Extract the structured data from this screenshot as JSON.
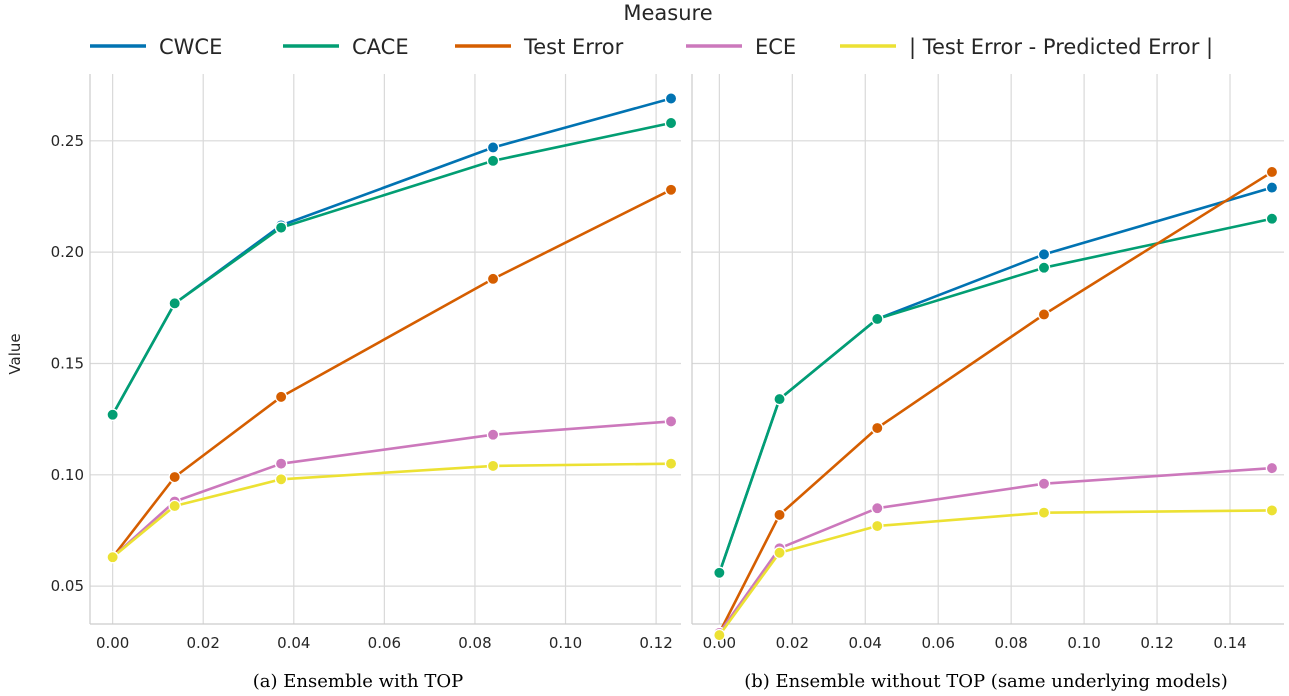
{
  "legend": {
    "title": "Measure",
    "entries": [
      {
        "name": "CWCE",
        "color": "#0173b2"
      },
      {
        "name": "CACE",
        "color": "#029e73"
      },
      {
        "name": "Test Error",
        "color": "#d55e00"
      },
      {
        "name": "ECE",
        "color": "#cc78bc"
      },
      {
        "name": "| Test Error - Predicted Error |",
        "color": "#ece133"
      }
    ]
  },
  "ylabel": "Value",
  "chart_data": [
    {
      "type": "line",
      "caption": "(a) Ensemble with TOP",
      "x_ticks": [
        "0.00",
        "0.02",
        "0.04",
        "0.06",
        "0.08",
        "0.10",
        "0.12"
      ],
      "y_ticks": [
        "0.05",
        "0.10",
        "0.15",
        "0.20",
        "0.25"
      ],
      "xlim": [
        -0.005,
        0.1255
      ],
      "ylim": [
        0.033,
        0.28
      ],
      "grid": true,
      "series": [
        {
          "name": "CWCE",
          "x": [
            0.0,
            0.0137,
            0.0372,
            0.084,
            0.1233
          ],
          "y": [
            0.127,
            0.177,
            0.212,
            0.247,
            0.269
          ]
        },
        {
          "name": "CACE",
          "x": [
            0.0,
            0.0137,
            0.0372,
            0.084,
            0.1233
          ],
          "y": [
            0.127,
            0.177,
            0.211,
            0.241,
            0.258
          ]
        },
        {
          "name": "Test Error",
          "x": [
            0.0,
            0.0137,
            0.0372,
            0.084,
            0.1233
          ],
          "y": [
            0.063,
            0.099,
            0.135,
            0.188,
            0.228
          ]
        },
        {
          "name": "ECE",
          "x": [
            0.0,
            0.0137,
            0.0372,
            0.084,
            0.1233
          ],
          "y": [
            0.063,
            0.088,
            0.105,
            0.118,
            0.124
          ]
        },
        {
          "name": "| Test Error - Predicted Error |",
          "x": [
            0.0,
            0.0137,
            0.0372,
            0.084,
            0.1233
          ],
          "y": [
            0.063,
            0.086,
            0.098,
            0.104,
            0.105
          ]
        }
      ]
    },
    {
      "type": "line",
      "caption": "(b) Ensemble without TOP (same underlying models)",
      "x_ticks": [
        "0.00",
        "0.02",
        "0.04",
        "0.06",
        "0.08",
        "0.10",
        "0.12",
        "0.14"
      ],
      "y_ticks": [
        "0.05",
        "0.10",
        "0.15",
        "0.20",
        "0.25"
      ],
      "xlim": [
        -0.0075,
        0.1548
      ],
      "ylim": [
        0.033,
        0.28
      ],
      "grid": true,
      "series": [
        {
          "name": "CWCE",
          "x": [
            0.0,
            0.0165,
            0.0433,
            0.089,
            0.1515
          ],
          "y": [
            0.056,
            0.134,
            0.17,
            0.199,
            0.229
          ]
        },
        {
          "name": "CACE",
          "x": [
            0.0,
            0.0165,
            0.0433,
            0.089,
            0.1515
          ],
          "y": [
            0.056,
            0.134,
            0.17,
            0.193,
            0.215
          ]
        },
        {
          "name": "Test Error",
          "x": [
            0.0,
            0.0165,
            0.0433,
            0.089,
            0.1515
          ],
          "y": [
            0.029,
            0.082,
            0.121,
            0.172,
            0.236
          ]
        },
        {
          "name": "ECE",
          "x": [
            0.0,
            0.0165,
            0.0433,
            0.089,
            0.1515
          ],
          "y": [
            0.029,
            0.067,
            0.085,
            0.096,
            0.103
          ]
        },
        {
          "name": "| Test Error - Predicted Error |",
          "x": [
            0.0,
            0.0165,
            0.0433,
            0.089,
            0.1515
          ],
          "y": [
            0.028,
            0.065,
            0.077,
            0.083,
            0.084
          ]
        }
      ]
    }
  ]
}
